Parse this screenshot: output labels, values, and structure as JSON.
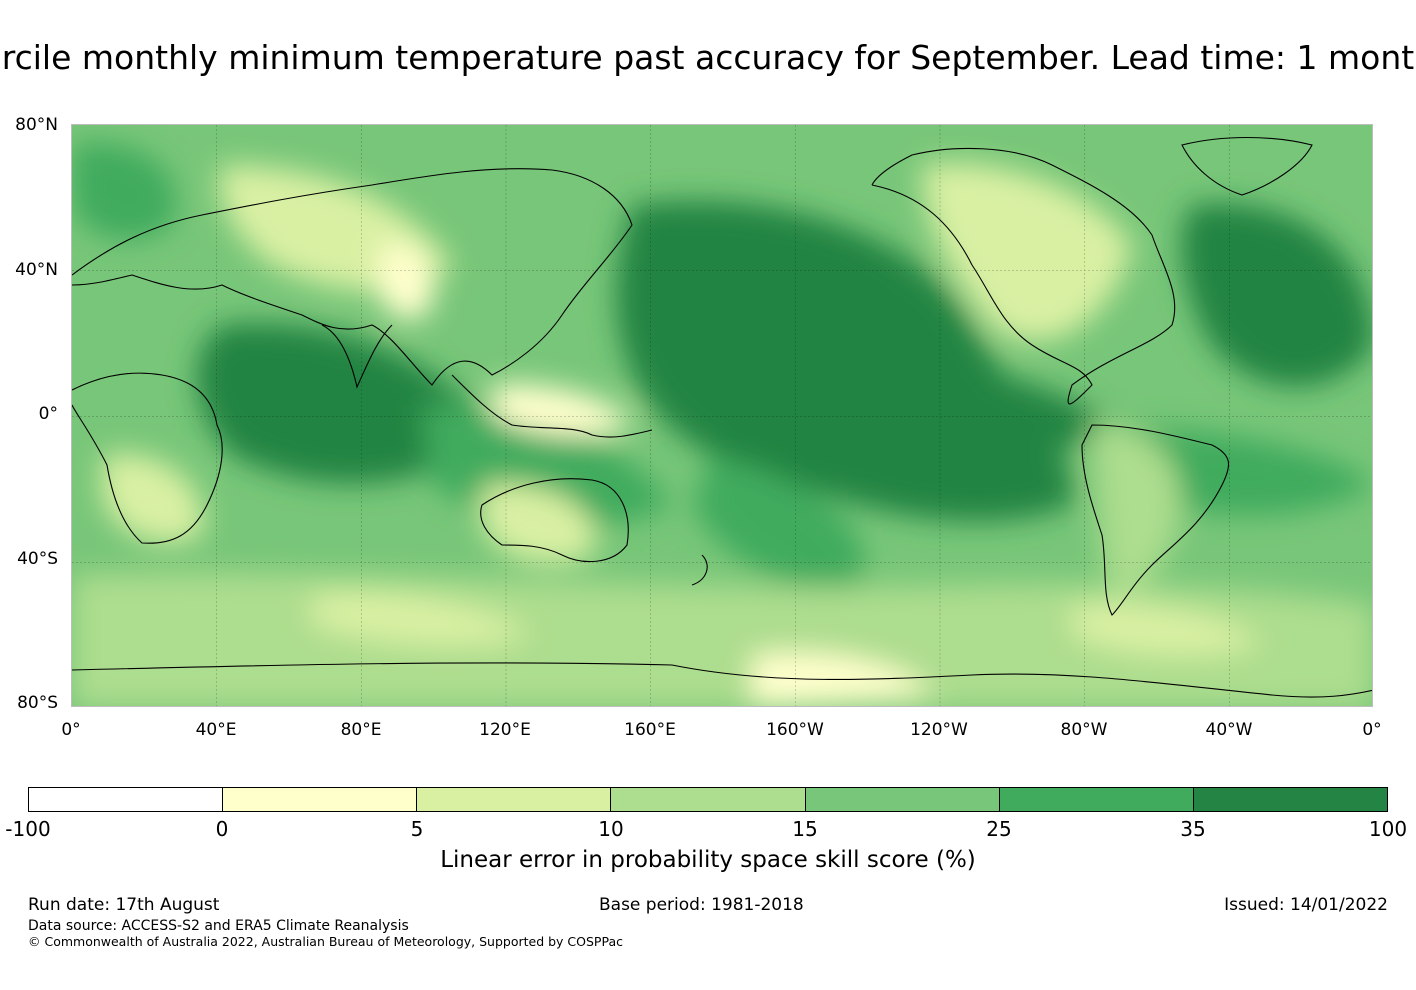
{
  "title": "rcile monthly minimum temperature past accuracy for September. Lead time: 1 mont",
  "map": {
    "lat_labels": [
      "80°N",
      "40°N",
      "0°",
      "40°S",
      "80°S"
    ],
    "lon_labels": [
      "0°",
      "40°E",
      "80°E",
      "120°E",
      "160°E",
      "160°W",
      "120°W",
      "80°W",
      "40°W",
      "0°"
    ]
  },
  "colorbar": {
    "ticks": [
      "-100",
      "0",
      "5",
      "10",
      "15",
      "25",
      "35",
      "100"
    ],
    "colors": [
      "#ffffff",
      "#ffffcc",
      "#d9f0a3",
      "#addd8e",
      "#78c679",
      "#41ab5d",
      "#238443"
    ],
    "label": "Linear error in probability space skill score (%)"
  },
  "footer": {
    "run_date": "Run date: 17th August",
    "base_period": "Base period: 1981-2018",
    "issued": "Issued: 14/01/2022",
    "data_source": "Data source: ACCESS-S2 and ERA5 Climate Reanalysis",
    "copyright": "© Commonwealth of Australia 2022, Australian Bureau of Meteorology, Supported by COSPPac"
  }
}
